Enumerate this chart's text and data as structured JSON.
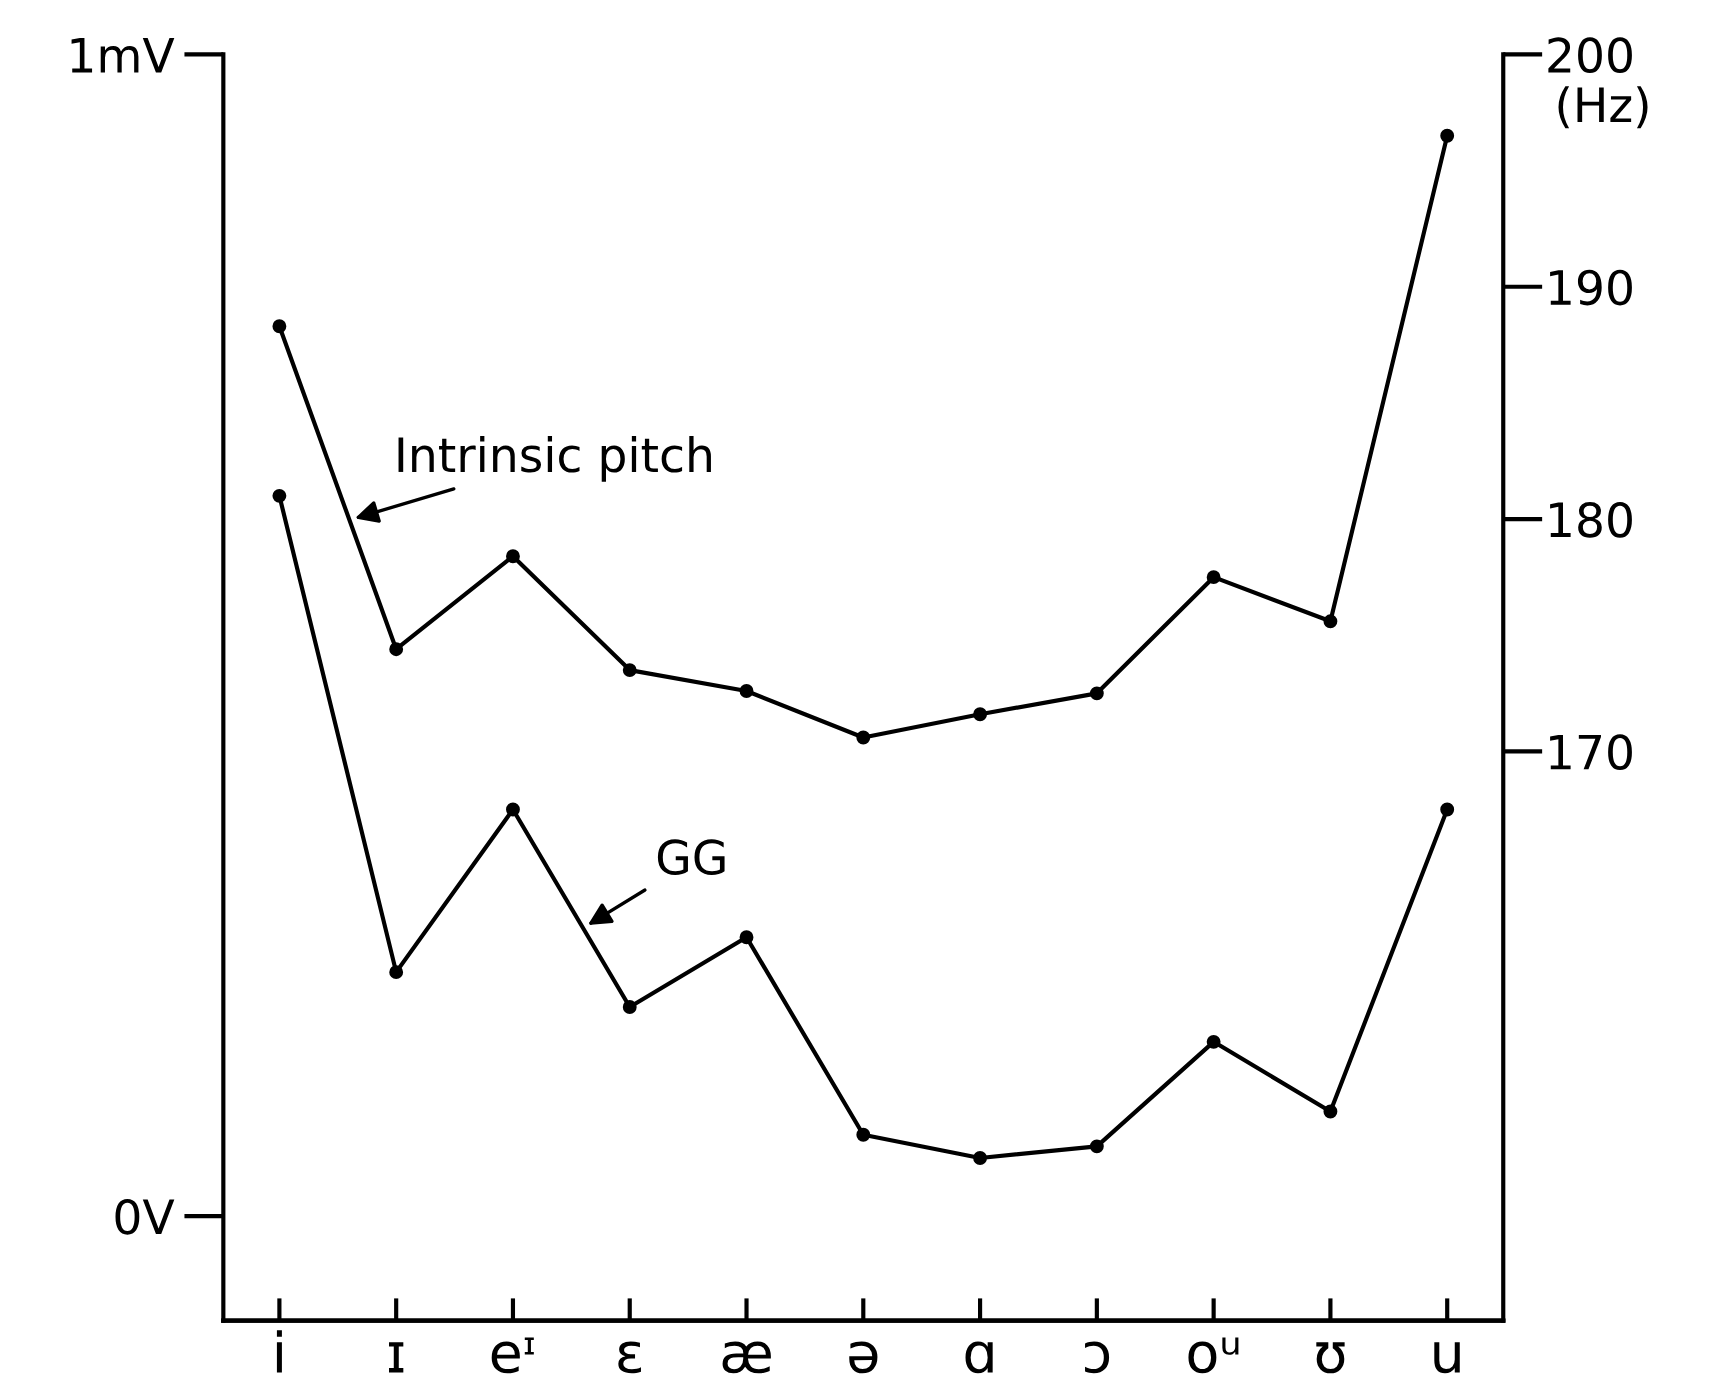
{
  "chart_data": {
    "type": "line",
    "categories": [
      "i",
      "ɪ",
      "eᶦ",
      "ɛ",
      "æ",
      "ə",
      "ɑ",
      "ɔ",
      "oᵘ",
      "ʊ",
      "u"
    ],
    "series": [
      {
        "name": "Intrinsic pitch",
        "color": "#000000",
        "axis": "y2",
        "values": [
          188.3,
          174.4,
          178.4,
          173.5,
          172.6,
          170.6,
          171.6,
          172.5,
          177.5,
          175.6,
          196.5
        ]
      },
      {
        "name": "GG",
        "color": "#000000",
        "values": [
          0.62,
          0.21,
          0.35,
          0.18,
          0.24,
          0.07,
          0.05,
          0.06,
          0.15,
          0.09,
          0.35
        ]
      }
    ],
    "ylim": [
      -0.09,
      1
    ],
    "yticks": [
      {
        "value": 1,
        "label": "1mV"
      },
      {
        "value": 0,
        "label": "0V"
      }
    ],
    "y2lim": [
      145.5,
      200
    ],
    "y2ticks": [
      200,
      190,
      180,
      170
    ],
    "y2label": "(Hz)",
    "marker": "circle",
    "line_style": "solid",
    "grid": false,
    "legend": false
  }
}
